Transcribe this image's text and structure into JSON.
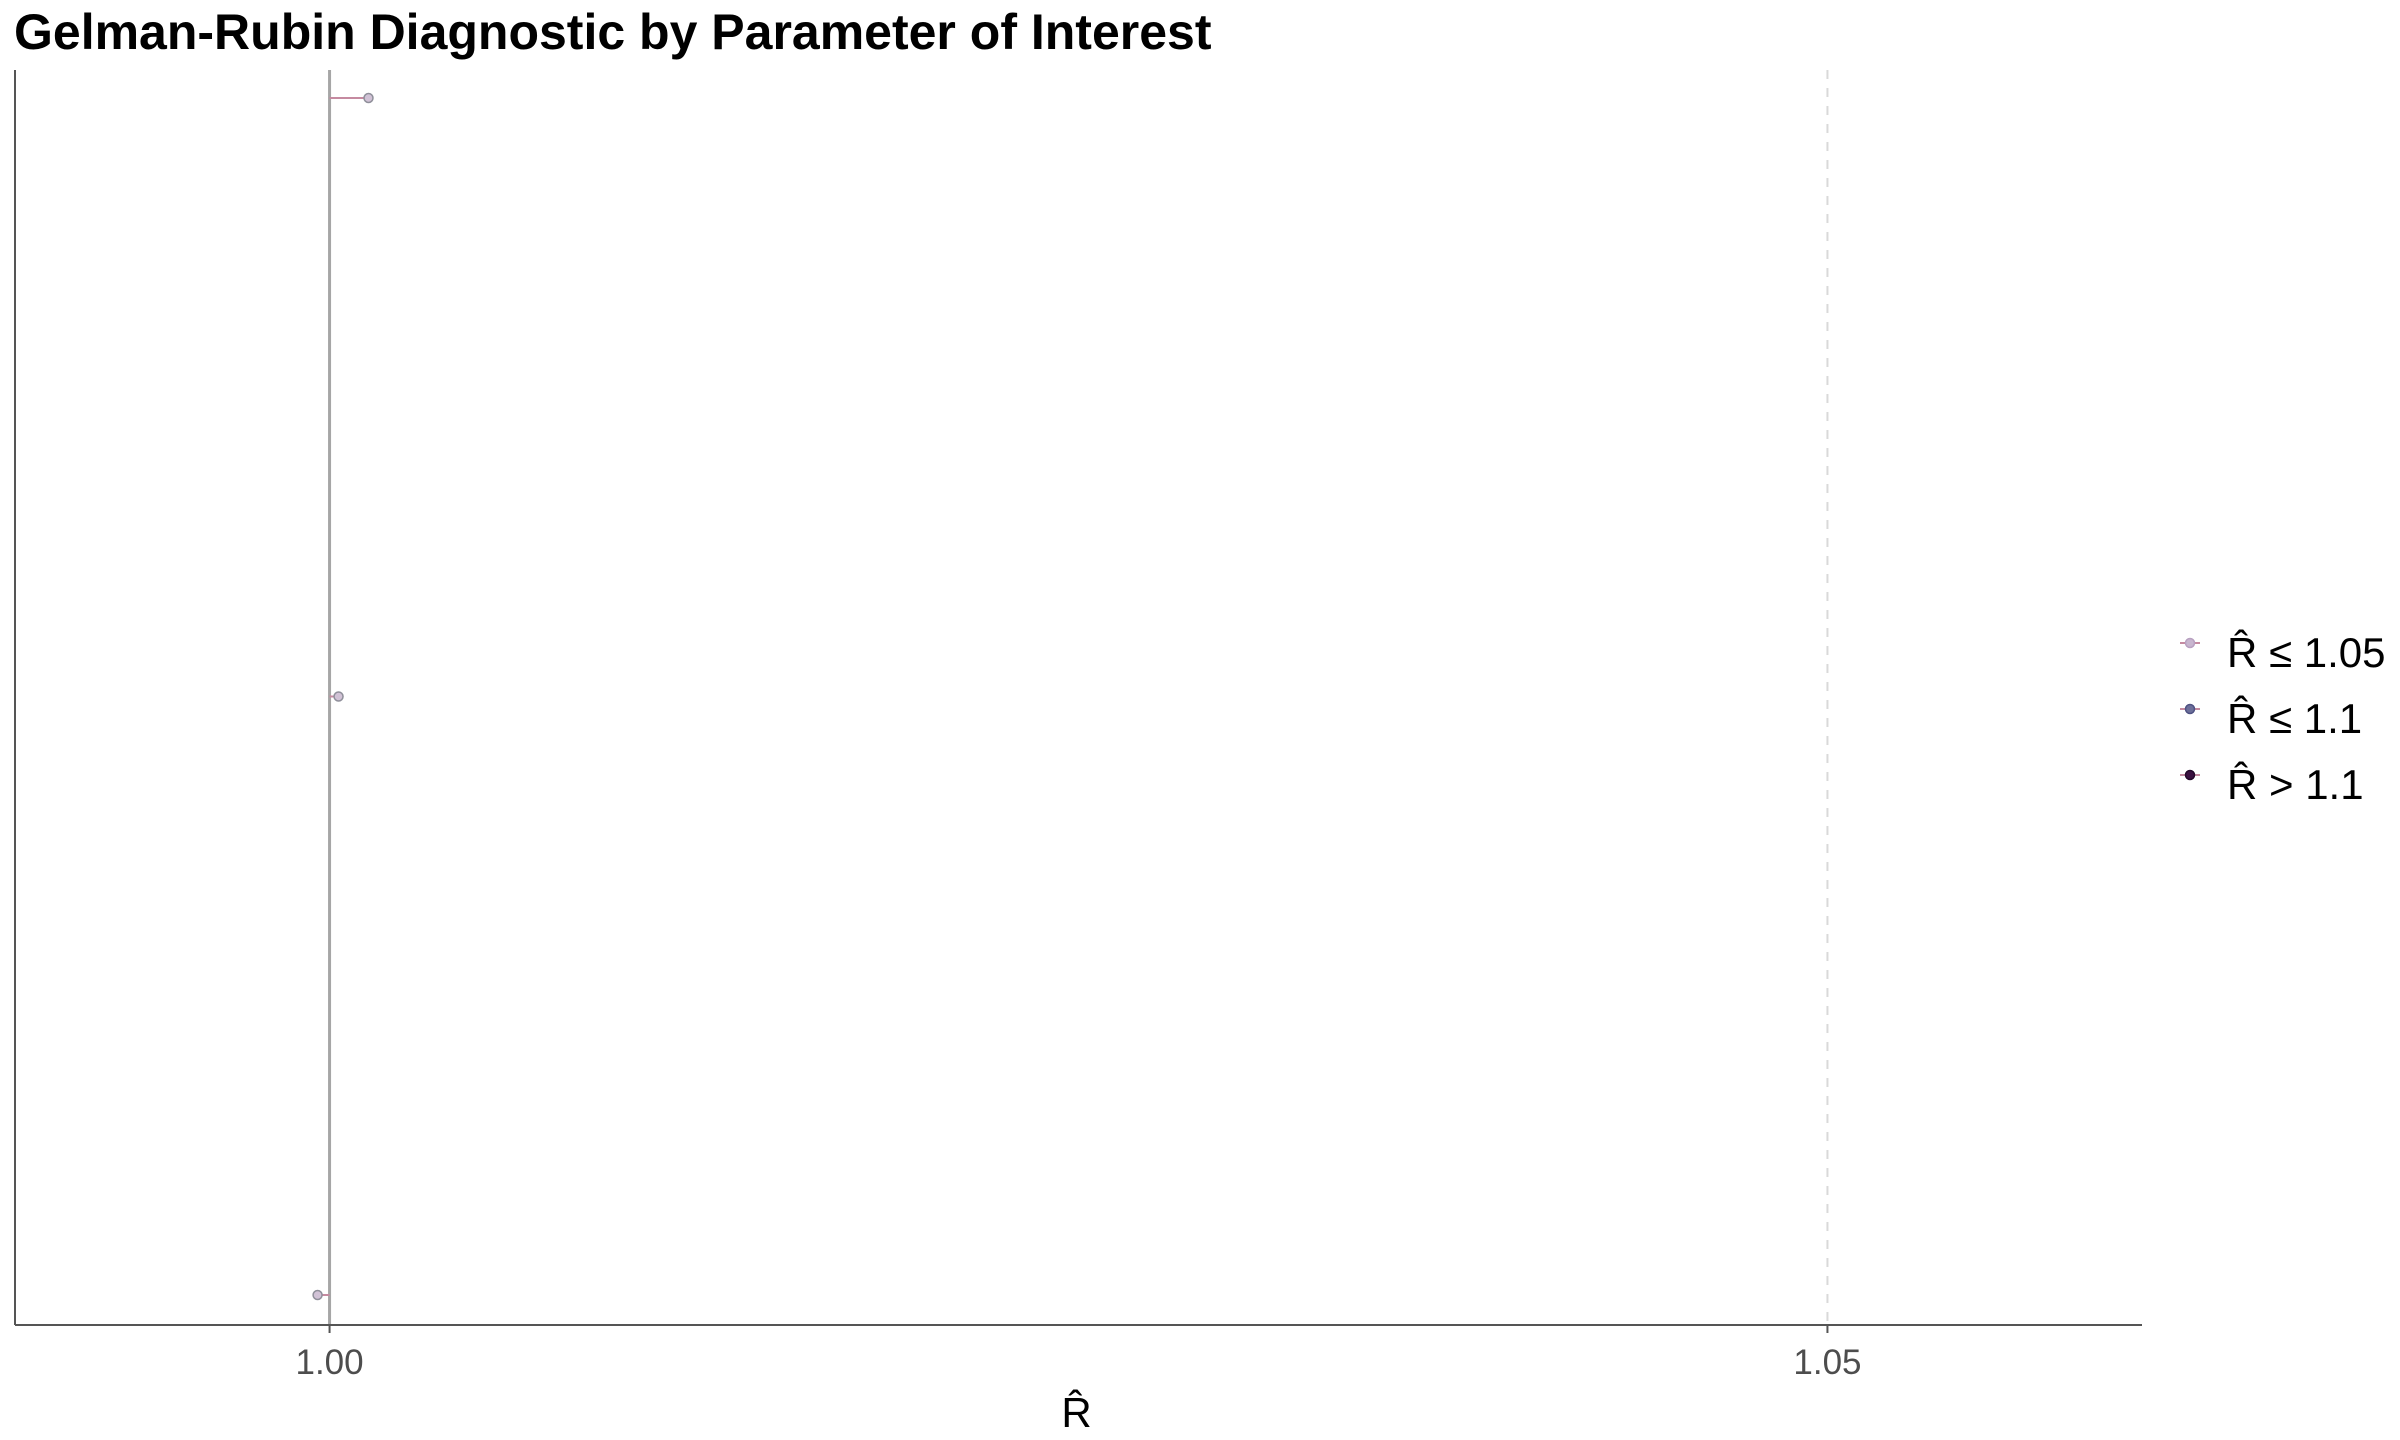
{
  "chart_data": {
    "type": "scatter",
    "title": "Gelman-Rubin Diagnostic by Parameter of Interest",
    "xlabel": "R̂",
    "ylabel": "",
    "xlim": [
      0.9895,
      1.0605
    ],
    "x_ticks": [
      {
        "value": 1.0,
        "label": "1.00"
      },
      {
        "value": 1.05,
        "label": "1.05"
      }
    ],
    "reference_lines": [
      {
        "value": 1.0,
        "style": "solid",
        "color": "#a6a6a6"
      },
      {
        "value": 1.05,
        "style": "dashed",
        "color": "#d9d9d9"
      }
    ],
    "grid": false,
    "legend_position": "right",
    "legend": [
      {
        "label": "R̂ ≤ 1.05",
        "color": "#c8b6cf",
        "stroke": "#b8a0c0"
      },
      {
        "label": "R̂ ≤ 1.1",
        "color": "#6c6f9a",
        "stroke": "#4f5283"
      },
      {
        "label": "R̂ > 1.1",
        "color": "#3a1040",
        "stroke": "#24082a"
      }
    ],
    "series": [
      {
        "category": "R̂ ≤ 1.05",
        "color": "#d1c2d6",
        "points": [
          {
            "x": 1.0013,
            "y": 3
          },
          {
            "x": 1.0003,
            "y": 2
          },
          {
            "x": 0.9996,
            "y": 1
          }
        ]
      }
    ],
    "y_levels": 3
  }
}
